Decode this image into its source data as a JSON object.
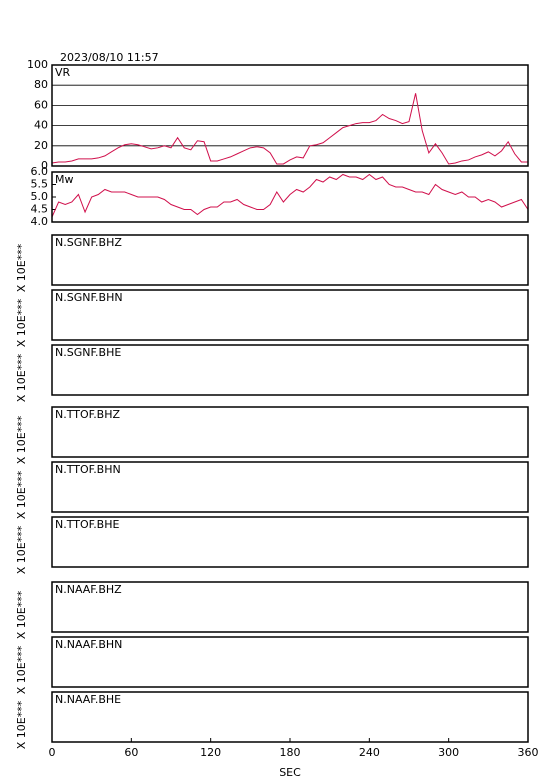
{
  "header": {
    "date": "2023/08/10  11:57"
  },
  "chart_data": [
    {
      "type": "line",
      "x": [
        0,
        5,
        10,
        15,
        20,
        25,
        30,
        35,
        40,
        45,
        50,
        55,
        60,
        65,
        70,
        75,
        80,
        85,
        90,
        95,
        100,
        105,
        110,
        115,
        120,
        125,
        130,
        135,
        140,
        145,
        150,
        155,
        160,
        165,
        170,
        175,
        180,
        185,
        190,
        195,
        200,
        205,
        210,
        215,
        220,
        225,
        230,
        235,
        240,
        245,
        250,
        255,
        260,
        265,
        270,
        275,
        280,
        285,
        290,
        295,
        300,
        305,
        310,
        315,
        320,
        325,
        330,
        335,
        340,
        345,
        350,
        355,
        360
      ],
      "series": [
        {
          "name": "VR",
          "color": "#d0104c",
          "values": [
            3,
            4,
            4,
            5,
            7,
            7,
            7,
            8,
            10,
            14,
            18,
            21,
            22,
            21,
            19,
            17,
            18,
            20,
            18,
            28,
            18,
            16,
            25,
            24,
            5,
            5,
            7,
            9,
            12,
            15,
            18,
            19,
            18,
            13,
            2,
            2,
            6,
            9,
            8,
            20,
            21,
            23,
            28,
            33,
            38,
            40,
            42,
            43,
            43,
            45,
            51,
            47,
            45,
            42,
            44,
            72,
            35,
            13,
            22,
            13,
            2,
            3,
            5,
            6,
            9,
            11,
            14,
            10,
            15,
            24,
            12,
            4,
            4
          ]
        }
      ],
      "xlim": [
        0,
        360
      ],
      "ylim": [
        0,
        100
      ],
      "yticks": [
        0,
        20,
        40,
        60,
        80,
        100
      ],
      "grid": true
    },
    {
      "type": "line",
      "x": [
        0,
        5,
        10,
        15,
        20,
        25,
        30,
        35,
        40,
        45,
        50,
        55,
        60,
        65,
        70,
        75,
        80,
        85,
        90,
        95,
        100,
        105,
        110,
        115,
        120,
        125,
        130,
        135,
        140,
        145,
        150,
        155,
        160,
        165,
        170,
        175,
        180,
        185,
        190,
        195,
        200,
        205,
        210,
        215,
        220,
        225,
        230,
        235,
        240,
        245,
        250,
        255,
        260,
        265,
        270,
        275,
        280,
        285,
        290,
        295,
        300,
        305,
        310,
        315,
        320,
        325,
        330,
        335,
        340,
        345,
        350,
        355,
        360
      ],
      "series": [
        {
          "name": "Mw",
          "color": "#d0104c",
          "values": [
            4.2,
            4.8,
            4.7,
            4.8,
            5.1,
            4.4,
            5.0,
            5.1,
            5.3,
            5.2,
            5.2,
            5.2,
            5.1,
            5.0,
            5.0,
            5.0,
            5.0,
            4.9,
            4.7,
            4.6,
            4.5,
            4.5,
            4.3,
            4.5,
            4.6,
            4.6,
            4.8,
            4.8,
            4.9,
            4.7,
            4.6,
            4.5,
            4.5,
            4.7,
            5.2,
            4.8,
            5.1,
            5.3,
            5.2,
            5.4,
            5.7,
            5.6,
            5.8,
            5.7,
            5.9,
            5.8,
            5.8,
            5.7,
            5.9,
            5.7,
            5.8,
            5.5,
            5.4,
            5.4,
            5.3,
            5.2,
            5.2,
            5.1,
            5.5,
            5.3,
            5.2,
            5.1,
            5.2,
            5.0,
            5.0,
            4.8,
            4.9,
            4.8,
            4.6,
            4.7,
            4.8,
            4.9,
            4.5
          ]
        }
      ],
      "xlim": [
        0,
        360
      ],
      "ylim": [
        4,
        6
      ],
      "yticks": [
        {
          "value": 4,
          "label": "4.0"
        },
        4.5,
        {
          "value": 5,
          "label": "5.0"
        },
        5.5,
        {
          "value": 6,
          "label": "6.0"
        }
      ],
      "grid": false
    },
    {
      "type": "waveform",
      "panels": [
        "N.SGNF.BHZ",
        "N.SGNF.BHN",
        "N.SGNF.BHE",
        "N.TTOF.BHZ",
        "N.TTOF.BHN",
        "N.TTOF.BHE",
        "N.NAAF.BHZ",
        "N.NAAF.BHN",
        "N.NAAF.BHE"
      ],
      "ylabel": "X 10E***",
      "xlim": [
        0,
        360
      ],
      "xticks": [
        0,
        60,
        120,
        180,
        240,
        300,
        360
      ],
      "xlabel": "SEC"
    }
  ]
}
